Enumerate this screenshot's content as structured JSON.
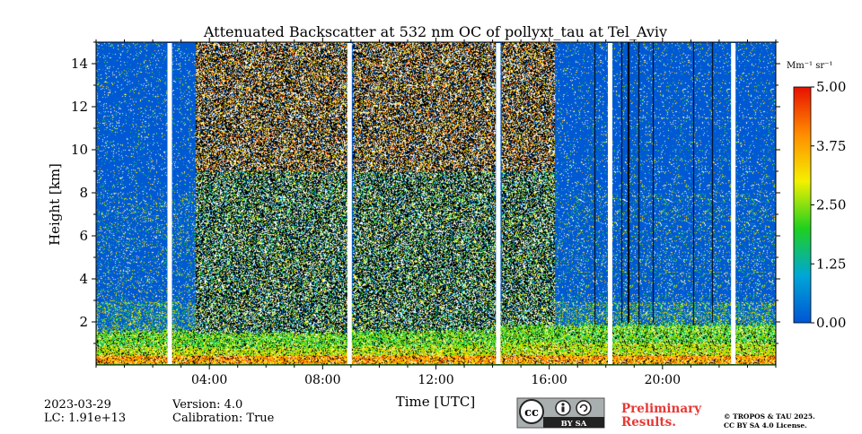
{
  "chart_data": {
    "type": "heatmap",
    "title": "Attenuated Backscatter at 532 nm OC of pollyxt_tau at Tel_Aviv",
    "xlabel": "Time [UTC]",
    "ylabel": "Height [km]",
    "xlim_hours": [
      0,
      24
    ],
    "ylim_km": [
      0,
      15
    ],
    "x_ticks": [
      {
        "hour": 4,
        "label": "04:00"
      },
      {
        "hour": 8,
        "label": "08:00"
      },
      {
        "hour": 12,
        "label": "12:00"
      },
      {
        "hour": 16,
        "label": "16:00"
      },
      {
        "hour": 20,
        "label": "20:00"
      }
    ],
    "y_ticks": [
      {
        "km": 2,
        "label": "2"
      },
      {
        "km": 4,
        "label": "4"
      },
      {
        "km": 6,
        "label": "6"
      },
      {
        "km": 8,
        "label": "8"
      },
      {
        "km": 10,
        "label": "10"
      },
      {
        "km": 12,
        "label": "12"
      },
      {
        "km": 14,
        "label": "14"
      }
    ],
    "colorbar": {
      "unit_label": "Mm⁻¹ sr⁻¹",
      "range": [
        0.0,
        5.0
      ],
      "ticks": [
        {
          "value": 0.0,
          "label": "0.00"
        },
        {
          "value": 1.25,
          "label": "1.25"
        },
        {
          "value": 2.5,
          "label": "2.50"
        },
        {
          "value": 3.75,
          "label": "3.75"
        },
        {
          "value": 5.0,
          "label": "5.00"
        }
      ],
      "colors": [
        "#0055d4",
        "#00a6d6",
        "#1fd01f",
        "#f4f000",
        "#ff8c00",
        "#e81000"
      ]
    },
    "data_gaps_hours": [
      2.6,
      8.95,
      14.2,
      18.15,
      22.5
    ],
    "segments": [
      {
        "start_h": 0.0,
        "end_h": 2.5,
        "signal": "clear-air",
        "boundary_layer_top_km": 1.6
      },
      {
        "start_h": 2.7,
        "end_h": 3.5,
        "signal": "clear-air",
        "boundary_layer_top_km": 1.6
      },
      {
        "start_h": 3.5,
        "end_h": 8.9,
        "signal": "noisy-daytime",
        "boundary_layer_top_km": 1.5
      },
      {
        "start_h": 9.05,
        "end_h": 14.1,
        "signal": "noisy-daytime",
        "boundary_layer_top_km": 1.6
      },
      {
        "start_h": 14.3,
        "end_h": 16.2,
        "signal": "noisy-daytime",
        "boundary_layer_top_km": 1.9
      },
      {
        "start_h": 16.2,
        "end_h": 18.1,
        "signal": "clear-air",
        "boundary_layer_top_km": 1.9
      },
      {
        "start_h": 18.25,
        "end_h": 22.45,
        "signal": "clear-air",
        "boundary_layer_top_km": 1.9
      },
      {
        "start_h": 22.6,
        "end_h": 24.0,
        "signal": "clear-air",
        "boundary_layer_top_km": 1.9
      }
    ]
  },
  "footer": {
    "date": "2023-03-29",
    "lc": "LC: 1.91e+13",
    "version": "Version: 4.0",
    "calibration": "Calibration: True",
    "license_badge_text": "BY SA",
    "preliminary_line1": "Preliminary",
    "preliminary_line2": "Results.",
    "copyright_line1": "© TROPOS & TAU 2025.",
    "copyright_line2": "CC BY SA 4.0 License."
  }
}
